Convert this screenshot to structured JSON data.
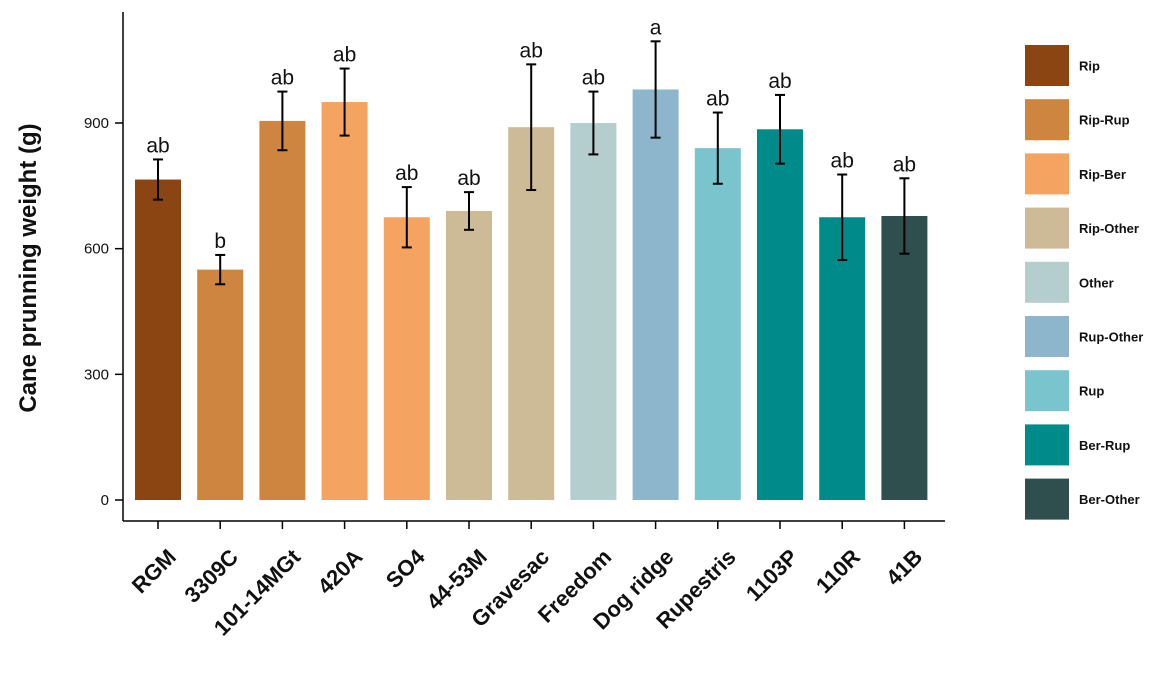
{
  "chart_data": {
    "type": "bar",
    "title": "",
    "xlabel": "",
    "ylabel": "Cane prunning weight (g)",
    "ylim": [
      0,
      1150
    ],
    "yticks": [
      0,
      300,
      600,
      900
    ],
    "grid": false,
    "legend_position": "right",
    "categories": [
      "RGM",
      "3309C",
      "101-14MGt",
      "420A",
      "SO4",
      "44-53M",
      "Gravesac",
      "Freedom",
      "Dog ridge",
      "Rupestris",
      "1103P",
      "110R",
      "41B"
    ],
    "values": [
      765,
      550,
      905,
      950,
      675,
      690,
      890,
      900,
      980,
      840,
      885,
      675,
      678
    ],
    "error": [
      48,
      35,
      70,
      80,
      72,
      45,
      150,
      75,
      115,
      85,
      82,
      102,
      90
    ],
    "significance": [
      "ab",
      "b",
      "ab",
      "ab",
      "ab",
      "ab",
      "ab",
      "ab",
      "a",
      "ab",
      "ab",
      "ab",
      "ab"
    ],
    "groups": [
      "Rip",
      "Rip-Rup",
      "Rip-Rup",
      "Rip-Ber",
      "Rip-Ber",
      "Rip-Other",
      "Rip-Other",
      "Other",
      "Rup-Other",
      "Rup",
      "Ber-Rup",
      "Ber-Rup",
      "Ber-Other"
    ],
    "legend": [
      {
        "name": "Rip",
        "color": "#8B4513"
      },
      {
        "name": "Rip-Rup",
        "color": "#CD853F"
      },
      {
        "name": "Rip-Ber",
        "color": "#F4A460"
      },
      {
        "name": "Rip-Other",
        "color": "#CDBA96"
      },
      {
        "name": "Other",
        "color": "#B4CDCD"
      },
      {
        "name": "Rup-Other",
        "color": "#8DB6CD"
      },
      {
        "name": "Rup",
        "color": "#7AC5CD"
      },
      {
        "name": "Ber-Rup",
        "color": "#008B8B"
      },
      {
        "name": "Ber-Other",
        "color": "#2F4F4F"
      }
    ]
  }
}
